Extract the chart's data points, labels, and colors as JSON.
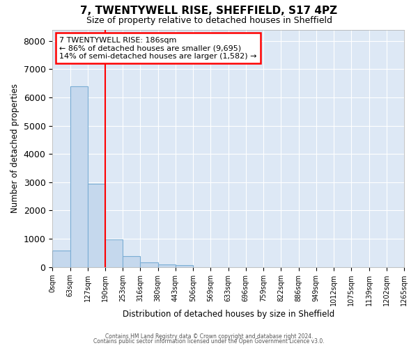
{
  "title1": "7, TWENTYWELL RISE, SHEFFIELD, S17 4PZ",
  "title2": "Size of property relative to detached houses in Sheffield",
  "xlabel": "Distribution of detached houses by size in Sheffield",
  "ylabel": "Number of detached properties",
  "bar_color": "#c5d8ed",
  "bar_edge_color": "#7aadd4",
  "background_color": "#dde8f5",
  "grid_color": "#ffffff",
  "fig_background": "#ffffff",
  "bin_labels": [
    "0sqm",
    "63sqm",
    "127sqm",
    "190sqm",
    "253sqm",
    "316sqm",
    "380sqm",
    "443sqm",
    "506sqm",
    "569sqm",
    "633sqm",
    "696sqm",
    "759sqm",
    "822sqm",
    "886sqm",
    "949sqm",
    "1012sqm",
    "1075sqm",
    "1139sqm",
    "1202sqm",
    "1265sqm"
  ],
  "bar_heights": [
    575,
    6400,
    2950,
    980,
    380,
    170,
    100,
    60,
    0,
    0,
    0,
    0,
    0,
    0,
    0,
    0,
    0,
    0,
    0,
    0
  ],
  "red_line_x": 190,
  "bin_width": 63,
  "ylim": [
    0,
    8400
  ],
  "yticks": [
    0,
    1000,
    2000,
    3000,
    4000,
    5000,
    6000,
    7000,
    8000
  ],
  "annotation_lines": [
    "7 TWENTYWELL RISE: 186sqm",
    "← 86% of detached houses are smaller (9,695)",
    "14% of semi-detached houses are larger (1,582) →"
  ],
  "footer1": "Contains HM Land Registry data © Crown copyright and database right 2024.",
  "footer2": "Contains public sector information licensed under the Open Government Licence v3.0."
}
